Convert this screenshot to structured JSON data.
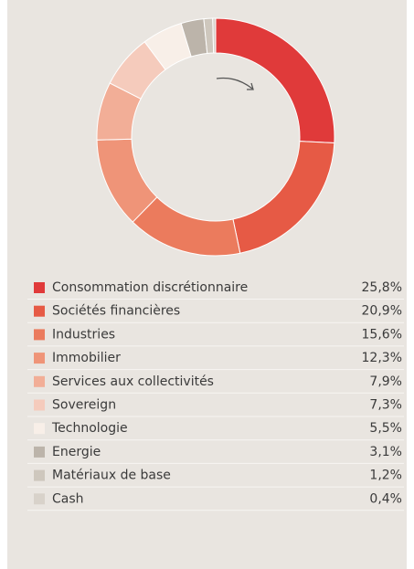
{
  "chart_data": {
    "type": "donut",
    "categories": [
      "Consommation discrétionnaire",
      "Sociétés financières",
      "Industries",
      "Immobilier",
      "Services aux collectivités",
      "Sovereign",
      "Technologie",
      "Energie",
      "Matériaux de base",
      "Cash"
    ],
    "values": [
      25.8,
      20.9,
      15.6,
      12.3,
      7.9,
      7.3,
      5.5,
      3.1,
      1.2,
      0.4
    ],
    "value_labels": [
      "25,8%",
      "20,9%",
      "15,6%",
      "12,3%",
      "7,9%",
      "7,3%",
      "5,5%",
      "3,1%",
      "1,2%",
      "0,4%"
    ],
    "colors": [
      "#e03a3a",
      "#e65a45",
      "#eb7b5d",
      "#ef9478",
      "#f2ae97",
      "#f5cbbc",
      "#f8efe8",
      "#bcb4aa",
      "#cec7bd",
      "#d8d2ca"
    ]
  }
}
